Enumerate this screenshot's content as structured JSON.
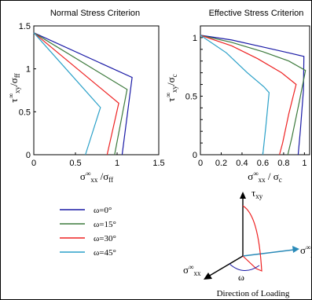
{
  "colors": {
    "c0": "#1a1aa6",
    "c15": "#3d7a3d",
    "c30": "#ee2222",
    "c45": "#2aa0c8"
  },
  "legend": [
    {
      "label": "ω=0°",
      "color": "#1a1aa6"
    },
    {
      "label": "ω=15°",
      "color": "#3d7a3d"
    },
    {
      "label": "ω=30°",
      "color": "#ee2222"
    },
    {
      "label": "ω=45°",
      "color": "#2aa0c8"
    }
  ],
  "diagram": {
    "tau_label": "τ",
    "tau_sub": "xy",
    "sxx_label": "σ",
    "sxx_sup": "∞",
    "sxx_sub": "xx",
    "syy_label": "σ",
    "syy_sup": "∞",
    "syy_sub": "yy",
    "omega_label": "ω",
    "caption": "Direction of Loading"
  },
  "chart_data": [
    {
      "type": "line",
      "title": "Normal Stress Criterion",
      "xlabel": "σxx∞/σff",
      "ylabel": "τxy∞/σff",
      "xlim": [
        0,
        1.5
      ],
      "ylim": [
        0,
        1.5
      ],
      "xticks": [
        "0",
        "0.5",
        "1",
        "1.5"
      ],
      "yticks": [
        "0",
        "0.5",
        "1",
        "1.5"
      ],
      "xtick_values": [
        0,
        0.5,
        1,
        1.5
      ],
      "ytick_values": [
        0,
        0.5,
        1,
        1.5
      ],
      "series": [
        {
          "name": "ω=0°",
          "color": "#1a1aa6",
          "x": [
            0,
            1.18,
            1.06
          ],
          "y": [
            1.42,
            0.9,
            0
          ]
        },
        {
          "name": "ω=15°",
          "color": "#3d7a3d",
          "x": [
            0,
            1.12,
            0.97
          ],
          "y": [
            1.42,
            0.76,
            0
          ]
        },
        {
          "name": "ω=30°",
          "color": "#ee2222",
          "x": [
            0,
            1.02,
            0.88
          ],
          "y": [
            1.42,
            0.6,
            0
          ]
        },
        {
          "name": "ω=45°",
          "color": "#2aa0c8",
          "x": [
            0,
            0.8,
            0.62
          ],
          "y": [
            1.42,
            0.55,
            0
          ]
        }
      ]
    },
    {
      "type": "line",
      "title": "Effective Stress Criterion",
      "xlabel": "σxx∞/σc",
      "ylabel": "τxy∞/σc",
      "xlim": [
        0,
        1.05
      ],
      "ylim": [
        0,
        1.1
      ],
      "xticks": [
        "0",
        "0.2",
        "0.4",
        "0.6",
        "0.8",
        "1"
      ],
      "yticks": [
        "0",
        "0.1",
        "0.2",
        "0.3",
        "0.4",
        "0.5",
        "0.6",
        "0.7",
        "0.8",
        "0.9",
        "1"
      ],
      "xtick_values": [
        0,
        0.2,
        0.4,
        0.6,
        0.8,
        1
      ],
      "ytick_values": [
        0,
        0.1,
        0.2,
        0.3,
        0.4,
        0.5,
        0.6,
        0.7,
        0.8,
        0.9,
        1
      ],
      "series": [
        {
          "name": "ω=0°",
          "color": "#1a1aa6",
          "x": [
            0,
            0.3,
            0.6,
            0.85,
            0.995,
            0.99,
            0.96,
            0.94
          ],
          "y": [
            1.02,
            0.98,
            0.92,
            0.87,
            0.84,
            0.55,
            0.2,
            0
          ]
        },
        {
          "name": "ω=15°",
          "color": "#3d7a3d",
          "x": [
            0,
            0.3,
            0.6,
            0.85,
            1.01,
            0.95,
            0.88,
            0.84
          ],
          "y": [
            1.02,
            0.96,
            0.88,
            0.8,
            0.72,
            0.45,
            0.15,
            0
          ]
        },
        {
          "name": "ω=30°",
          "color": "#ee2222",
          "x": [
            0,
            0.3,
            0.55,
            0.78,
            0.92,
            0.85,
            0.79,
            0.76
          ],
          "y": [
            1.02,
            0.93,
            0.82,
            0.7,
            0.6,
            0.35,
            0.1,
            0
          ]
        },
        {
          "name": "ω=45°",
          "color": "#2aa0c8",
          "x": [
            0,
            0.25,
            0.45,
            0.61,
            0.66,
            0.63,
            0.6
          ],
          "y": [
            1.02,
            0.87,
            0.7,
            0.58,
            0.53,
            0.25,
            0
          ]
        }
      ]
    }
  ]
}
